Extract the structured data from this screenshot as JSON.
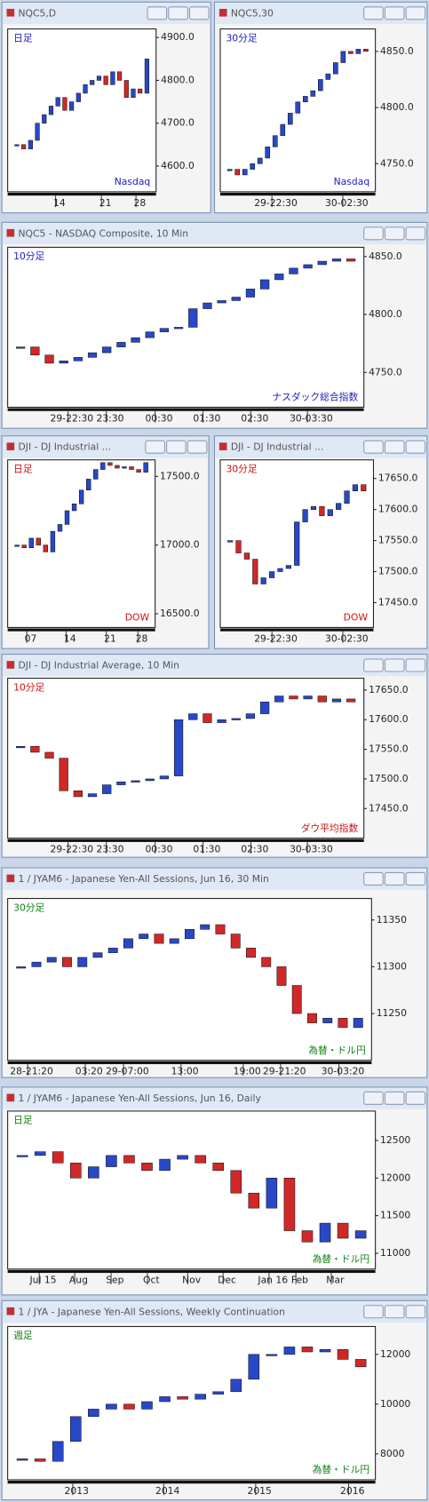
{
  "windows": [
    {
      "title": "NQC5,D",
      "period": "日足",
      "label": "Nasdaq",
      "label_color": "#2020c0",
      "ylim": [
        4540,
        4920
      ],
      "yticks": [
        {
          "value": 4900,
          "label": "4900.0"
        },
        {
          "value": 4800,
          "label": "4800.0"
        },
        {
          "value": 4700,
          "label": "4700.0"
        },
        {
          "value": 4600,
          "label": "4600.0"
        }
      ],
      "xlabels": [
        "14",
        "21",
        "28"
      ],
      "closes": [
        4650,
        4640,
        4660,
        4700,
        4720,
        4740,
        4760,
        4730,
        4750,
        4770,
        4790,
        4800,
        4810,
        4790,
        4820,
        4800,
        4760,
        4780,
        4770,
        4850
      ]
    },
    {
      "title": "NQC5,30",
      "period": "30分足",
      "label": "Nasdaq",
      "label_color": "#2020c0",
      "ylim": [
        4725,
        4870
      ],
      "yticks": [
        {
          "value": 4850,
          "label": "4850.0"
        },
        {
          "value": 4800,
          "label": "4800.0"
        },
        {
          "value": 4750,
          "label": "4750.0"
        }
      ],
      "xlabels": [
        "29-22:30",
        "30-02:30"
      ],
      "closes": [
        4745,
        4740,
        4745,
        4750,
        4755,
        4765,
        4775,
        4785,
        4795,
        4805,
        4810,
        4815,
        4825,
        4830,
        4840,
        4850,
        4848,
        4852,
        4850
      ]
    },
    {
      "title": "NQC5 - NASDAQ Composite, 10 Min",
      "period": "10分足",
      "label": "ナスダック総合指数",
      "label_color": "#2020c0",
      "ylim": [
        4720,
        4858
      ],
      "yticks": [
        {
          "value": 4850,
          "label": "4850.0"
        },
        {
          "value": 4800,
          "label": "4800.0"
        },
        {
          "value": 4750,
          "label": "4750.0"
        }
      ],
      "xlabels": [
        "29-22:30",
        "23:30",
        "00:30",
        "01:30",
        "02:30",
        "30-03:30"
      ],
      "closes": [
        4772,
        4765,
        4758,
        4760,
        4763,
        4767,
        4772,
        4776,
        4780,
        4785,
        4788,
        4789,
        4805,
        4810,
        4812,
        4815,
        4822,
        4830,
        4835,
        4840,
        4843,
        4846,
        4848,
        4846
      ]
    },
    {
      "title": "DJI - DJ Industrial ...",
      "period": "日足",
      "label": "DOW",
      "label_color": "#d01010",
      "ylim": [
        16400,
        17620
      ],
      "yticks": [
        {
          "value": 17500,
          "label": "17500.0"
        },
        {
          "value": 17000,
          "label": "17000.0"
        },
        {
          "value": 16500,
          "label": "16500.0"
        }
      ],
      "xlabels": [
        "07",
        "14",
        "21",
        "28"
      ],
      "closes": [
        17000,
        16980,
        17050,
        17000,
        16950,
        17100,
        17150,
        17250,
        17300,
        17400,
        17480,
        17550,
        17600,
        17580,
        17560,
        17570,
        17550,
        17530,
        17600
      ]
    },
    {
      "title": "DJI - DJ Industrial ...",
      "period": "30分足",
      "label": "DOW",
      "label_color": "#d01010",
      "ylim": [
        17410,
        17680
      ],
      "yticks": [
        {
          "value": 17650,
          "label": "17650.0"
        },
        {
          "value": 17600,
          "label": "17600.0"
        },
        {
          "value": 17550,
          "label": "17550.0"
        },
        {
          "value": 17500,
          "label": "17500.0"
        },
        {
          "value": 17450,
          "label": "17450.0"
        }
      ],
      "xlabels": [
        "29-22:30",
        "30-02:30"
      ],
      "closes": [
        17550,
        17530,
        17520,
        17480,
        17490,
        17500,
        17505,
        17510,
        17580,
        17600,
        17605,
        17590,
        17600,
        17610,
        17630,
        17640,
        17630
      ]
    },
    {
      "title": "DJI - DJ Industrial Average, 10 Min",
      "period": "10分足",
      "label": "ダウ平均指数",
      "label_color": "#d01010",
      "ylim": [
        17400,
        17670
      ],
      "yticks": [
        {
          "value": 17650,
          "label": "17650.0"
        },
        {
          "value": 17600,
          "label": "17600.0"
        },
        {
          "value": 17550,
          "label": "17550.0"
        },
        {
          "value": 17500,
          "label": "17500.0"
        },
        {
          "value": 17450,
          "label": "17450.0"
        }
      ],
      "xlabels": [
        "29-22:30",
        "23:30",
        "00:30",
        "01:30",
        "02:30",
        "30-03:30"
      ],
      "closes": [
        17555,
        17545,
        17535,
        17480,
        17470,
        17475,
        17490,
        17495,
        17497,
        17500,
        17505,
        17600,
        17610,
        17595,
        17600,
        17602,
        17610,
        17630,
        17640,
        17635,
        17640,
        17630,
        17635,
        17630
      ]
    },
    {
      "title": "1 / JYAM6 - Japanese Yen-All Sessions, Jun 16, 30 Min",
      "period": "30分足",
      "label": "為替・ドル円",
      "label_color": "#108010",
      "ylim": [
        11200,
        11373
      ],
      "yticks": [
        11350,
        11300,
        11250
      ],
      "xlabels": [
        "28-21:20",
        "03:20",
        "29-07:00",
        "13:00",
        "19:00",
        "29-21:20",
        "30-03:20"
      ],
      "closes": [
        11300,
        11305,
        11310,
        11300,
        11310,
        11315,
        11320,
        11330,
        11335,
        11325,
        11330,
        11340,
        11345,
        11335,
        11320,
        11310,
        11300,
        11280,
        11250,
        11240,
        11245,
        11235,
        11245
      ]
    },
    {
      "title": "1 / JYAM6 - Japanese Yen-All Sessions, Jun 16, Daily",
      "period": "日足",
      "label": "為替・ドル円",
      "label_color": "#108010",
      "ylim": [
        10790,
        12890
      ],
      "yticks": [
        12500,
        12000,
        11500,
        11000
      ],
      "xlabels": [
        "Jul 15",
        "Aug",
        "Sep",
        "Oct",
        "Nov",
        "Dec",
        "Jan 16",
        "Feb",
        "Mar"
      ],
      "closes": [
        12300,
        12350,
        12200,
        12000,
        12150,
        12300,
        12200,
        12100,
        12250,
        12300,
        12200,
        12100,
        11800,
        11600,
        12000,
        11300,
        11150,
        11400,
        11200,
        11300
      ]
    },
    {
      "title": "1 / JYA - Japanese Yen-All Sessions, Weekly Continuation",
      "period": "週足",
      "label": "為替・ドル円",
      "label_color": "#108010",
      "ylim": [
        6960,
        13120
      ],
      "yticks": [
        12000,
        10000,
        8000
      ],
      "xlabels": [
        "2013",
        "2014",
        "2015",
        "2016"
      ],
      "closes": [
        7800,
        7700,
        8500,
        9500,
        9800,
        10000,
        9800,
        10100,
        10300,
        10200,
        10400,
        10500,
        11000,
        12000,
        12000,
        12300,
        12100,
        12200,
        11800,
        11500
      ]
    }
  ]
}
